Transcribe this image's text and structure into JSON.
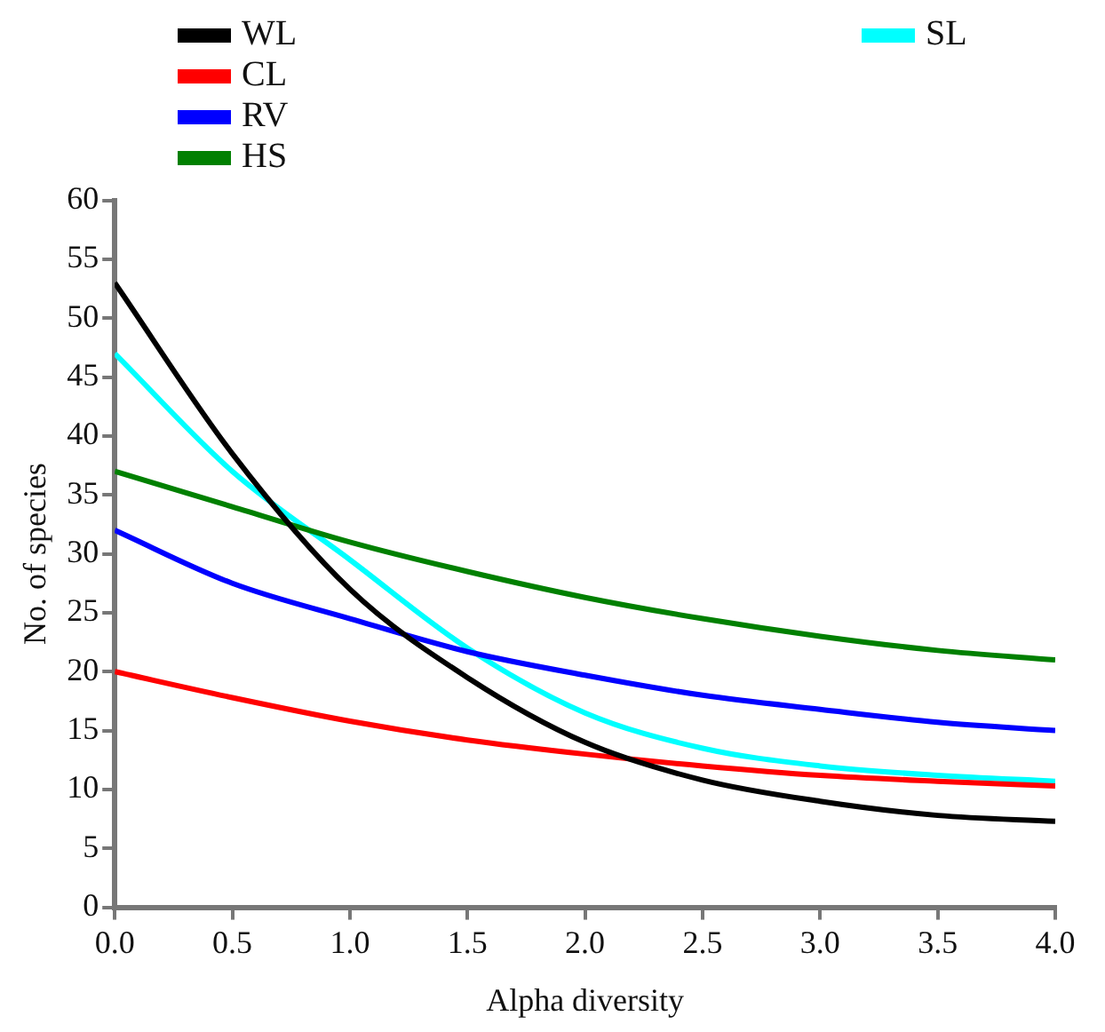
{
  "chart_data": {
    "type": "line",
    "xlabel": "Alpha diversity",
    "ylabel": "No. of species",
    "x": [
      0,
      0.5,
      1,
      1.5,
      2,
      2.5,
      3,
      3.5,
      4
    ],
    "xlim": [
      0,
      4
    ],
    "xticks": [
      {
        "value": 0,
        "label": "0.0"
      },
      {
        "value": 0.5,
        "label": "0.5"
      },
      {
        "value": 1,
        "label": "1.0"
      },
      {
        "value": 1.5,
        "label": "1.5"
      },
      {
        "value": 2,
        "label": "2.0"
      },
      {
        "value": 2.5,
        "label": "2.5"
      },
      {
        "value": 3,
        "label": "3.0"
      },
      {
        "value": 3.5,
        "label": "3.5"
      },
      {
        "value": 4,
        "label": "4.0"
      }
    ],
    "ylim": [
      0,
      60
    ],
    "yticks": [
      0,
      5,
      10,
      15,
      20,
      25,
      30,
      35,
      40,
      45,
      50,
      55,
      60
    ],
    "series": [
      {
        "name": "WL",
        "color": "#000000",
        "values": [
          53,
          38.5,
          27,
          19.5,
          14,
          10.8,
          9,
          7.8,
          7.3
        ]
      },
      {
        "name": "CL",
        "color": "#ff0000",
        "values": [
          20,
          17.8,
          15.8,
          14.2,
          13,
          12,
          11.2,
          10.7,
          10.3
        ]
      },
      {
        "name": "RV",
        "color": "#0000ff",
        "values": [
          32,
          27.5,
          24.5,
          21.7,
          19.7,
          18,
          16.8,
          15.7,
          15
        ]
      },
      {
        "name": "HS",
        "color": "#008000",
        "values": [
          37,
          34,
          31,
          28.5,
          26.3,
          24.5,
          23,
          21.8,
          21
        ]
      },
      {
        "name": "SL",
        "color": "#00ffff",
        "values": [
          47,
          37,
          29.5,
          22,
          16.5,
          13.5,
          12,
          11.2,
          10.7
        ]
      }
    ],
    "grid": false,
    "legend": "top",
    "marker": "none",
    "line_style": "solid"
  }
}
